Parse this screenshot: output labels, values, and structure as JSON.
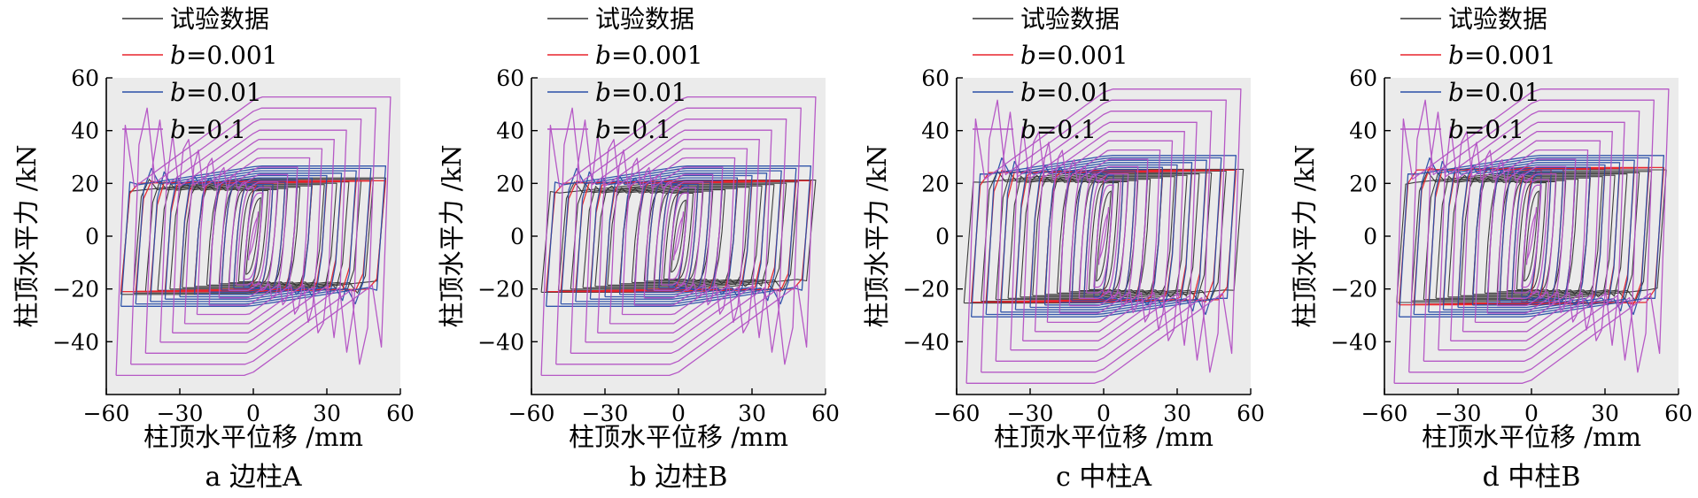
{
  "legend": [
    {
      "label": "试验数据",
      "color": "#333333"
    },
    {
      "prefix": "b",
      "label": "=0.001",
      "color": "#e8242b"
    },
    {
      "prefix": "b",
      "label": "=0.01",
      "color": "#2a4fa8"
    },
    {
      "prefix": "b",
      "label": "=0.1",
      "color": "#b351c4"
    }
  ],
  "chart_data": [
    {
      "type": "line",
      "caption": "a 边柱A",
      "xlabel": "柱顶水平位移 /mm",
      "ylabel": "柱顶水平力 /kN",
      "xlim": [
        -60,
        60
      ],
      "ylim": [
        -60,
        60
      ],
      "xticks": [
        -60,
        -30,
        0,
        30,
        60
      ],
      "yticks": [
        -40,
        -20,
        0,
        20,
        40,
        60
      ],
      "xtick_labels": [
        "−60",
        "−30",
        "0",
        "30",
        "60"
      ],
      "ytick_labels": [
        "−40",
        "−20",
        "0",
        "20",
        "40",
        "60"
      ],
      "series": [
        {
          "name": "试验数据",
          "amplitudes": [
            3,
            6,
            10,
            14,
            19,
            24,
            29,
            34,
            39,
            44,
            49,
            54
          ],
          "yield": 17,
          "hardening": 0.1
        },
        {
          "name": "b=0.001",
          "amplitudes": [
            4,
            8,
            13,
            18,
            24,
            30,
            36,
            42,
            48,
            54
          ],
          "yield": 20,
          "hardening": 0.02
        },
        {
          "name": "b=0.01",
          "amplitudes": [
            4,
            8,
            13,
            18,
            24,
            30,
            36,
            42,
            48,
            54
          ],
          "yield": 19,
          "hardening": 0.15
        },
        {
          "name": "b=0.1",
          "amplitudes": [
            2,
            4,
            7,
            10,
            14,
            18,
            23,
            28,
            33,
            38,
            44,
            50,
            56
          ],
          "yield": 16,
          "hardening": 0.7
        }
      ]
    },
    {
      "type": "line",
      "caption": "b 边柱B",
      "xlabel": "柱顶水平位移 /mm",
      "ylabel": "柱顶水平力 /kN",
      "xlim": [
        -60,
        60
      ],
      "ylim": [
        -60,
        60
      ],
      "xticks": [
        -60,
        -30,
        0,
        30,
        60
      ],
      "yticks": [
        -40,
        -20,
        0,
        20,
        40,
        60
      ],
      "xtick_labels": [
        "−60",
        "−30",
        "0",
        "30",
        "60"
      ],
      "ytick_labels": [
        "−40",
        "−20",
        "0",
        "20",
        "40",
        "60"
      ],
      "series": [
        {
          "name": "试验数据",
          "amplitudes": [
            3,
            6,
            10,
            14,
            19,
            24,
            29,
            34,
            39,
            44,
            49,
            56
          ],
          "yield": 16,
          "hardening": 0.1
        },
        {
          "name": "b=0.001",
          "amplitudes": [
            4,
            8,
            13,
            18,
            24,
            30,
            36,
            42,
            48,
            54
          ],
          "yield": 20,
          "hardening": 0.02
        },
        {
          "name": "b=0.01",
          "amplitudes": [
            4,
            8,
            13,
            18,
            24,
            30,
            36,
            42,
            48,
            54
          ],
          "yield": 19,
          "hardening": 0.15
        },
        {
          "name": "b=0.1",
          "amplitudes": [
            2,
            4,
            7,
            10,
            14,
            18,
            23,
            28,
            33,
            38,
            44,
            50,
            56
          ],
          "yield": 16,
          "hardening": 0.7
        }
      ]
    },
    {
      "type": "line",
      "caption": "c 中柱A",
      "xlabel": "柱顶水平位移 /mm",
      "ylabel": "柱顶水平力 /kN",
      "xlim": [
        -60,
        60
      ],
      "ylim": [
        -60,
        60
      ],
      "xticks": [
        -60,
        -30,
        0,
        30,
        60
      ],
      "yticks": [
        -40,
        -20,
        0,
        20,
        40,
        60
      ],
      "xtick_labels": [
        "−60",
        "−30",
        "0",
        "30",
        "60"
      ],
      "ytick_labels": [
        "−40",
        "−20",
        "0",
        "20",
        "40",
        "60"
      ],
      "series": [
        {
          "name": "试验数据",
          "amplitudes": [
            3,
            6,
            10,
            14,
            19,
            24,
            29,
            34,
            39,
            44,
            50,
            57
          ],
          "yield": 20,
          "hardening": 0.1
        },
        {
          "name": "b=0.001",
          "amplitudes": [
            4,
            8,
            13,
            18,
            24,
            30,
            36,
            42,
            48,
            54
          ],
          "yield": 24,
          "hardening": 0.02
        },
        {
          "name": "b=0.01",
          "amplitudes": [
            4,
            8,
            13,
            18,
            24,
            30,
            36,
            42,
            48,
            54
          ],
          "yield": 23,
          "hardening": 0.15
        },
        {
          "name": "b=0.1",
          "amplitudes": [
            2,
            4,
            7,
            10,
            14,
            18,
            23,
            28,
            33,
            38,
            44,
            50,
            56
          ],
          "yield": 19,
          "hardening": 0.7
        }
      ]
    },
    {
      "type": "line",
      "caption": "d 中柱B",
      "xlabel": "柱顶水平位移 /mm",
      "ylabel": "柱顶水平力 /kN",
      "xlim": [
        -60,
        60
      ],
      "ylim": [
        -60,
        60
      ],
      "xticks": [
        -60,
        -30,
        0,
        30,
        60
      ],
      "yticks": [
        -40,
        -20,
        0,
        20,
        40,
        60
      ],
      "xtick_labels": [
        "−60",
        "−30",
        "0",
        "30",
        "60"
      ],
      "ytick_labels": [
        "−40",
        "−20",
        "0",
        "20",
        "40",
        "60"
      ],
      "series": [
        {
          "name": "试验数据",
          "amplitudes": [
            3,
            6,
            10,
            14,
            19,
            24,
            29,
            34,
            39,
            44,
            49,
            55
          ],
          "yield": 20,
          "hardening": 0.1
        },
        {
          "name": "b=0.001",
          "amplitudes": [
            4,
            8,
            13,
            18,
            24,
            30,
            36,
            42,
            48,
            54
          ],
          "yield": 25,
          "hardening": 0.02
        },
        {
          "name": "b=0.01",
          "amplitudes": [
            4,
            8,
            13,
            18,
            24,
            30,
            36,
            42,
            48,
            54
          ],
          "yield": 23,
          "hardening": 0.15
        },
        {
          "name": "b=0.1",
          "amplitudes": [
            2,
            4,
            7,
            10,
            14,
            18,
            23,
            28,
            33,
            38,
            44,
            50,
            56
          ],
          "yield": 19,
          "hardening": 0.7
        }
      ]
    }
  ]
}
